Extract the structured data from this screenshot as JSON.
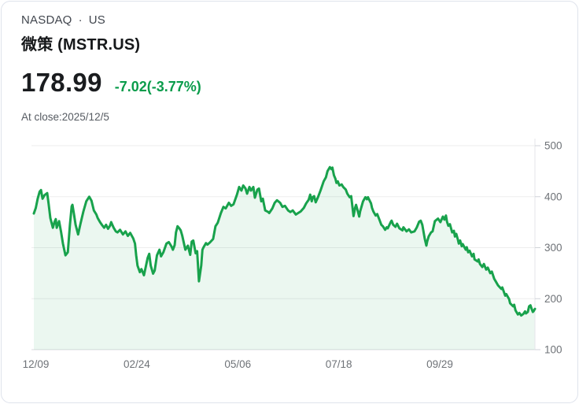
{
  "header": {
    "exchange": "NASDAQ",
    "separator": "·",
    "market": "US",
    "title": "微策 (MSTR.US)",
    "price": "178.99",
    "change": "-7.02(-3.77%)",
    "close_label": "At close:2025/12/5"
  },
  "colors": {
    "line": "#18a24c",
    "area_fill": "rgba(24,162,76,0.085)",
    "change_text": "#0a9c4b",
    "grid": "#ededee",
    "grid_bottom": "#d9dbdf",
    "axis": "#e4e6ea",
    "tick": "#d0d3d8",
    "axis_label": "#6e7277"
  },
  "chart_data": {
    "type": "area",
    "title": "",
    "xlabel": "",
    "ylabel": "",
    "legend": false,
    "grid": true,
    "ylim": [
      100,
      500
    ],
    "y_ticks": [
      500,
      400,
      300,
      200,
      100
    ],
    "xlim_days": [
      0,
      258
    ],
    "x_ticks": [
      {
        "label": "12/09",
        "day": 1
      },
      {
        "label": "02/24",
        "day": 53
      },
      {
        "label": "05/06",
        "day": 105
      },
      {
        "label": "07/18",
        "day": 157
      },
      {
        "label": "09/29",
        "day": 209
      }
    ],
    "series": [
      {
        "name": "MSTR.US",
        "points": [
          [
            0,
            367
          ],
          [
            1,
            378
          ],
          [
            2,
            396
          ],
          [
            3,
            410
          ],
          [
            3.7,
            413
          ],
          [
            4.5,
            396
          ],
          [
            5.5,
            403
          ],
          [
            6.9,
            407
          ],
          [
            7.6,
            386
          ],
          [
            8.5,
            358
          ],
          [
            9.8,
            339
          ],
          [
            10.6,
            350
          ],
          [
            11.3,
            356
          ],
          [
            11.8,
            339
          ],
          [
            13,
            352
          ],
          [
            14,
            331
          ],
          [
            15,
            308
          ],
          [
            16.3,
            285
          ],
          [
            17.5,
            291
          ],
          [
            18.6,
            345
          ],
          [
            19.5,
            381
          ],
          [
            19.9,
            384
          ],
          [
            20.7,
            365
          ],
          [
            21.5,
            345
          ],
          [
            22.8,
            326
          ],
          [
            24,
            347
          ],
          [
            25.5,
            371
          ],
          [
            27,
            391
          ],
          [
            28.5,
            400
          ],
          [
            29.7,
            392
          ],
          [
            30.9,
            373
          ],
          [
            32.2,
            365
          ],
          [
            32.9,
            358
          ],
          [
            34.1,
            350
          ],
          [
            35.2,
            344
          ],
          [
            36.2,
            339
          ],
          [
            37.2,
            345
          ],
          [
            38.2,
            337
          ],
          [
            39.2,
            343
          ],
          [
            39.8,
            350
          ],
          [
            41.1,
            339
          ],
          [
            42.2,
            332
          ],
          [
            43.1,
            330
          ],
          [
            44.4,
            335
          ],
          [
            45.9,
            326
          ],
          [
            47.2,
            332
          ],
          [
            48.4,
            323
          ],
          [
            49.6,
            329
          ],
          [
            51.2,
            318
          ],
          [
            52.1,
            308
          ],
          [
            52.7,
            285
          ],
          [
            53.4,
            265
          ],
          [
            54.6,
            252
          ],
          [
            55.4,
            258
          ],
          [
            56.7,
            246
          ],
          [
            58.6,
            280
          ],
          [
            59.4,
            288
          ],
          [
            60.2,
            265
          ],
          [
            61.4,
            249
          ],
          [
            62.2,
            255
          ],
          [
            63.4,
            285
          ],
          [
            64.7,
            296
          ],
          [
            65.5,
            283
          ],
          [
            66.7,
            291
          ],
          [
            68.3,
            308
          ],
          [
            69.5,
            311
          ],
          [
            70.8,
            303
          ],
          [
            71.6,
            296
          ],
          [
            72.5,
            305
          ],
          [
            73.2,
            330
          ],
          [
            74,
            342
          ],
          [
            74.9,
            338
          ],
          [
            75.6,
            334
          ],
          [
            76.4,
            324
          ],
          [
            78,
            296
          ],
          [
            79.3,
            304
          ],
          [
            80.5,
            286
          ],
          [
            81.3,
            312
          ],
          [
            82.1,
            314
          ],
          [
            83.3,
            289
          ],
          [
            84.1,
            293
          ],
          [
            85,
            234
          ],
          [
            86.2,
            265
          ],
          [
            86.8,
            296
          ],
          [
            87.4,
            301
          ],
          [
            88.6,
            309
          ],
          [
            89.4,
            306
          ],
          [
            90.6,
            310
          ],
          [
            92.3,
            317
          ],
          [
            93.5,
            342
          ],
          [
            94.7,
            349
          ],
          [
            96.3,
            368
          ],
          [
            97.6,
            380
          ],
          [
            98.8,
            377
          ],
          [
            100.4,
            388
          ],
          [
            101.6,
            382
          ],
          [
            102.8,
            385
          ],
          [
            104.5,
            403
          ],
          [
            105.7,
            419
          ],
          [
            106.9,
            412
          ],
          [
            107.8,
            422
          ],
          [
            109,
            416
          ],
          [
            109.8,
            406
          ],
          [
            111,
            419
          ],
          [
            111.8,
            412
          ],
          [
            113,
            419
          ],
          [
            113.8,
            398
          ],
          [
            115.1,
            414
          ],
          [
            115.9,
            416
          ],
          [
            117.1,
            391
          ],
          [
            117.9,
            396
          ],
          [
            119.1,
            373
          ],
          [
            120.7,
            370
          ],
          [
            121.2,
            368
          ],
          [
            122.8,
            377
          ],
          [
            124,
            388
          ],
          [
            125.2,
            393
          ],
          [
            126.8,
            388
          ],
          [
            128,
            380
          ],
          [
            129.3,
            382
          ],
          [
            130.9,
            373
          ],
          [
            132.1,
            370
          ],
          [
            133.3,
            373
          ],
          [
            134.9,
            365
          ],
          [
            136.1,
            368
          ],
          [
            137.4,
            371
          ],
          [
            139,
            378
          ],
          [
            140.2,
            387
          ],
          [
            141.5,
            394
          ],
          [
            142.3,
            404
          ],
          [
            143.1,
            391
          ],
          [
            143.6,
            399
          ],
          [
            144.3,
            401
          ],
          [
            145.1,
            389
          ],
          [
            146.3,
            399
          ],
          [
            147.6,
            412
          ],
          [
            149.2,
            430
          ],
          [
            150.4,
            438
          ],
          [
            151.2,
            450
          ],
          [
            152.4,
            458
          ],
          [
            153.2,
            454
          ],
          [
            153.7,
            457
          ],
          [
            154.5,
            442
          ],
          [
            155.3,
            435
          ],
          [
            155.8,
            427
          ],
          [
            156.5,
            430
          ],
          [
            157.3,
            422
          ],
          [
            158.5,
            424
          ],
          [
            159.3,
            419
          ],
          [
            160.6,
            414
          ],
          [
            161.4,
            406
          ],
          [
            162.6,
            399
          ],
          [
            163.4,
            401
          ],
          [
            164.6,
            362
          ],
          [
            165.4,
            378
          ],
          [
            165.9,
            384
          ],
          [
            166.7,
            373
          ],
          [
            167.5,
            361
          ],
          [
            168,
            371
          ],
          [
            169.5,
            391
          ],
          [
            170.7,
            399
          ],
          [
            171.5,
            395
          ],
          [
            172,
            399
          ],
          [
            173.6,
            387
          ],
          [
            174.1,
            378
          ],
          [
            174.8,
            371
          ],
          [
            176,
            363
          ],
          [
            176.8,
            366
          ],
          [
            178,
            354
          ],
          [
            178.9,
            345
          ],
          [
            179.7,
            342
          ],
          [
            180.9,
            335
          ],
          [
            181.7,
            340
          ],
          [
            182.2,
            338
          ],
          [
            183.7,
            350
          ],
          [
            184.2,
            353
          ],
          [
            185,
            345
          ],
          [
            186.2,
            341
          ],
          [
            187,
            347
          ],
          [
            188.2,
            338
          ],
          [
            189.8,
            334
          ],
          [
            190.3,
            340
          ],
          [
            191.9,
            332
          ],
          [
            193.1,
            336
          ],
          [
            194.3,
            330
          ],
          [
            196,
            332
          ],
          [
            197.2,
            340
          ],
          [
            198.4,
            351
          ],
          [
            199.2,
            353
          ],
          [
            200,
            345
          ],
          [
            201.3,
            317
          ],
          [
            202.1,
            304
          ],
          [
            202.5,
            312
          ],
          [
            203.3,
            322
          ],
          [
            204.5,
            330
          ],
          [
            205.3,
            332
          ],
          [
            206.5,
            352
          ],
          [
            208.1,
            357
          ],
          [
            209.3,
            350
          ],
          [
            210.6,
            361
          ],
          [
            211.4,
            355
          ],
          [
            212.2,
            363
          ],
          [
            212.7,
            351
          ],
          [
            213.4,
            343
          ],
          [
            214.2,
            346
          ],
          [
            215.4,
            330
          ],
          [
            216.3,
            333
          ],
          [
            216.8,
            322
          ],
          [
            217.5,
            327
          ],
          [
            218.3,
            316
          ],
          [
            218.8,
            308
          ],
          [
            219.5,
            314
          ],
          [
            220.3,
            303
          ],
          [
            220.8,
            307
          ],
          [
            222.4,
            296
          ],
          [
            222.9,
            301
          ],
          [
            223.6,
            291
          ],
          [
            224.4,
            294
          ],
          [
            225.6,
            283
          ],
          [
            226.4,
            288
          ],
          [
            226.9,
            277
          ],
          [
            228.5,
            273
          ],
          [
            229,
            277
          ],
          [
            229.7,
            268
          ],
          [
            230.9,
            262
          ],
          [
            231.7,
            268
          ],
          [
            232.9,
            257
          ],
          [
            233.7,
            261
          ],
          [
            235,
            250
          ],
          [
            235.8,
            253
          ],
          [
            237,
            239
          ],
          [
            237.8,
            234
          ],
          [
            239,
            226
          ],
          [
            240.7,
            219
          ],
          [
            241.2,
            222
          ],
          [
            242.7,
            206
          ],
          [
            243.2,
            209
          ],
          [
            244.7,
            199
          ],
          [
            245.2,
            191
          ],
          [
            246.8,
            185
          ],
          [
            247.3,
            188
          ],
          [
            248,
            177
          ],
          [
            249.2,
            169
          ],
          [
            250,
            172
          ],
          [
            250.9,
            167
          ],
          [
            252,
            170
          ],
          [
            252.9,
            175
          ],
          [
            253.4,
            171
          ],
          [
            254.3,
            174
          ],
          [
            255,
            185
          ],
          [
            255.7,
            187
          ],
          [
            256.3,
            180
          ],
          [
            256.9,
            174
          ],
          [
            257.4,
            176
          ],
          [
            258,
            180
          ]
        ]
      }
    ]
  }
}
